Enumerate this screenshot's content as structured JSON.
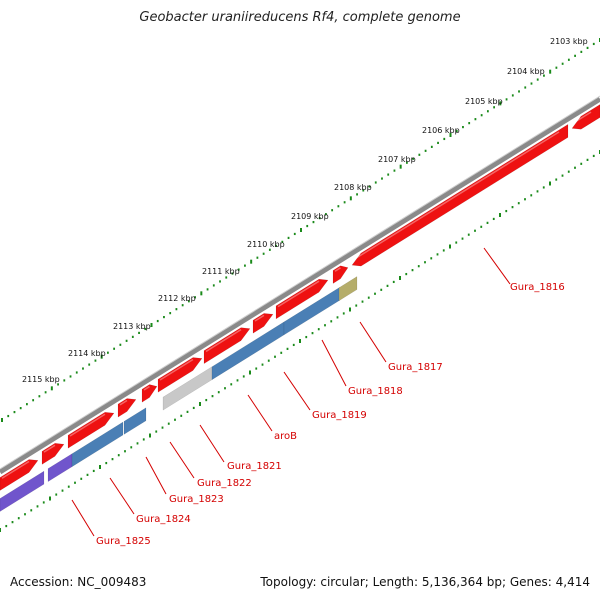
{
  "title": "Geobacter uraniireducens Rf4, complete genome",
  "footer": {
    "accession": "Accession: NC_009483",
    "summary": "Topology: circular; Length: 5,136,364 bp; Genes: 4,414"
  },
  "ticks": [
    "2103 kbp",
    "2104 kbp",
    "2105 kbp",
    "2106 kbp",
    "2107 kbp",
    "2108 kbp",
    "2109 kbp",
    "2110 kbp",
    "2111 kbp",
    "2112 kbp",
    "2113 kbp",
    "2114 kbp",
    "2115 kbp"
  ],
  "genes": [
    "Gura_1816",
    "Gura_1817",
    "Gura_1818",
    "Gura_1819",
    "aroB",
    "Gura_1821",
    "Gura_1822",
    "Gura_1823",
    "Gura_1824",
    "Gura_1825"
  ],
  "colors": {
    "forward_cds": "#ee1111",
    "reverse_cds": "#4a7fb5",
    "pseudo": "#c8c8c8",
    "rna": "#b5ad6a",
    "other": "#7055cc",
    "backbone": "#8a8a8a",
    "tick_dots": "#1a8a1a",
    "label": "#d40000"
  }
}
